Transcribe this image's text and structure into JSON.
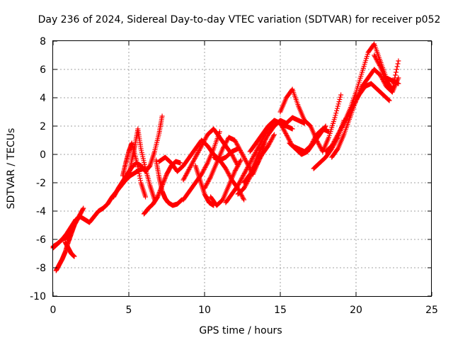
{
  "chart_data": {
    "type": "scatter",
    "title": "Day 236 of 2024, Sidereal Day-to-day VTEC variation (SDTVAR) for receiver p052",
    "xlabel": "GPS time / hours",
    "ylabel": "SDTVAR / TECUs",
    "xlim": [
      0,
      25
    ],
    "ylim": [
      -10,
      8
    ],
    "x_ticks": [
      "0",
      "5",
      "10",
      "15",
      "20",
      "25"
    ],
    "y_ticks": [
      "-10",
      "-8",
      "-6",
      "-4",
      "-2",
      "0",
      "2",
      "4",
      "6",
      "8"
    ],
    "grid": true,
    "legend": "none",
    "marker": "plus",
    "color": "#ff0000",
    "series": [
      {
        "x": [
          0.0,
          0.3,
          0.6,
          0.9,
          1.2,
          1.5,
          1.8,
          2.1,
          2.4,
          2.7,
          3.0,
          3.3,
          3.6,
          3.9,
          4.2,
          4.5,
          4.8,
          5.1,
          5.4,
          5.7,
          6.0
        ],
        "y": [
          -6.5,
          -6.3,
          -6.0,
          -5.6,
          -5.1,
          -4.6,
          -4.4,
          -4.6,
          -4.8,
          -4.4,
          -4.0,
          -3.8,
          -3.5,
          -3.0,
          -2.6,
          -2.2,
          -1.8,
          -1.5,
          -1.3,
          -1.1,
          -1.0
        ]
      },
      {
        "x": [
          0.2,
          0.4,
          0.6,
          0.8,
          1.0,
          1.2,
          1.4,
          1.7,
          2.0
        ],
        "y": [
          -8.2,
          -7.8,
          -7.4,
          -6.9,
          -6.2,
          -5.6,
          -5.0,
          -4.4,
          -3.8
        ]
      },
      {
        "x": [
          0.8,
          1.0,
          1.2,
          1.4
        ],
        "y": [
          -6.2,
          -6.6,
          -7.0,
          -7.2
        ]
      },
      {
        "x": [
          4.0,
          4.3,
          4.6,
          4.9,
          5.2,
          5.5,
          5.8,
          6.1,
          6.4,
          6.7,
          7.0,
          7.2
        ],
        "y": [
          -3.0,
          -2.4,
          -1.9,
          -1.4,
          -0.9,
          -0.6,
          -0.8,
          -1.2,
          -0.8,
          0.2,
          1.5,
          2.7
        ]
      },
      {
        "x": [
          4.6,
          4.8,
          5.0,
          5.2,
          5.5,
          5.8,
          6.1
        ],
        "y": [
          -1.5,
          -0.6,
          0.2,
          0.8,
          -0.4,
          -2.0,
          -3.0
        ]
      },
      {
        "x": [
          5.0,
          5.2,
          5.4,
          5.6,
          5.8,
          6.1,
          6.4,
          6.7
        ],
        "y": [
          -1.5,
          -0.4,
          0.6,
          1.8,
          0.4,
          -1.0,
          -2.2,
          -3.2
        ]
      },
      {
        "x": [
          6.0,
          6.3,
          6.6,
          6.9,
          7.2,
          7.5,
          7.8,
          8.1,
          8.4
        ],
        "y": [
          -4.2,
          -3.8,
          -3.5,
          -3.0,
          -2.2,
          -1.4,
          -0.8,
          -0.5,
          -0.6
        ]
      },
      {
        "x": [
          6.8,
          7.0,
          7.2,
          7.4,
          7.6,
          7.9,
          8.2,
          8.5
        ],
        "y": [
          -0.4,
          -1.6,
          -2.6,
          -3.1,
          -3.4,
          -3.6,
          -3.5,
          -3.2
        ]
      },
      {
        "x": [
          7.0,
          7.4,
          7.8,
          8.2,
          8.6,
          9.0,
          9.4,
          9.8,
          10.2,
          10.6,
          11.0,
          11.4,
          11.8,
          12.2,
          12.6
        ],
        "y": [
          -0.5,
          -0.2,
          -0.6,
          -1.2,
          -0.8,
          -0.2,
          0.4,
          1.0,
          0.6,
          0.0,
          -0.4,
          -1.0,
          -1.8,
          -2.4,
          -3.2
        ]
      },
      {
        "x": [
          8.6,
          9.0,
          9.4,
          9.8,
          10.2,
          10.6,
          11.0,
          11.4,
          11.8,
          12.2
        ],
        "y": [
          -1.8,
          -1.0,
          -0.2,
          0.6,
          1.4,
          1.8,
          1.2,
          0.6,
          0.0,
          -0.8
        ]
      },
      {
        "x": [
          8.6,
          9.0,
          9.4,
          9.8,
          10.2,
          10.6,
          11.0
        ],
        "y": [
          -3.2,
          -2.6,
          -2.0,
          -1.4,
          -0.6,
          0.4,
          1.6
        ]
      },
      {
        "x": [
          9.4,
          9.7,
          10.0,
          10.3,
          10.6
        ],
        "y": [
          -0.8,
          -1.8,
          -2.8,
          -3.4,
          -3.6
        ]
      },
      {
        "x": [
          10.0,
          10.4,
          10.8,
          11.2,
          11.6,
          12.0,
          12.4,
          12.8,
          13.2,
          13.6,
          14.0
        ],
        "y": [
          -2.4,
          -1.6,
          -0.6,
          0.4,
          1.2,
          1.0,
          0.2,
          -0.6,
          -1.4,
          -0.4,
          0.8
        ]
      },
      {
        "x": [
          10.4,
          10.8,
          11.2,
          11.6,
          12.0,
          12.4
        ],
        "y": [
          -3.0,
          -3.6,
          -3.2,
          -2.2,
          -1.2,
          -0.4
        ]
      },
      {
        "x": [
          10.6,
          11.0,
          11.4,
          11.8,
          12.2
        ],
        "y": [
          -0.2,
          -0.4,
          -0.2,
          0.2,
          0.4
        ]
      },
      {
        "x": [
          11.4,
          11.8,
          12.2,
          12.6,
          13.0,
          13.4,
          13.8,
          14.2,
          14.6,
          15.0,
          15.4,
          15.8
        ],
        "y": [
          -3.4,
          -2.8,
          -2.2,
          -1.4,
          -0.6,
          0.2,
          1.0,
          1.8,
          2.4,
          2.2,
          2.0,
          1.8
        ]
      },
      {
        "x": [
          12.2,
          12.6,
          13.0,
          13.4,
          13.8,
          14.2,
          14.6
        ],
        "y": [
          -2.8,
          -2.4,
          -1.6,
          -0.8,
          0.0,
          0.6,
          1.4
        ]
      },
      {
        "x": [
          12.6,
          13.0,
          13.4,
          13.8,
          14.2,
          14.6,
          15.0,
          15.4,
          15.8,
          16.2,
          16.6
        ],
        "y": [
          -2.0,
          -1.4,
          -0.4,
          0.6,
          1.4,
          2.0,
          2.4,
          2.2,
          2.6,
          2.4,
          2.2
        ]
      },
      {
        "x": [
          13.0,
          13.4,
          13.8,
          14.2,
          14.6,
          15.0,
          15.4,
          15.8,
          16.2,
          16.6,
          17.0,
          17.4,
          17.8,
          18.2
        ],
        "y": [
          0.2,
          0.8,
          1.4,
          2.0,
          2.4,
          2.2,
          1.4,
          0.6,
          0.4,
          0.2,
          0.6,
          1.4,
          1.8,
          1.6
        ]
      },
      {
        "x": [
          15.0,
          15.4,
          15.8,
          16.2,
          16.6
        ],
        "y": [
          3.0,
          4.0,
          4.6,
          3.4,
          2.4
        ]
      },
      {
        "x": [
          15.6,
          16.0,
          16.4,
          16.8,
          17.2,
          17.6,
          18.0
        ],
        "y": [
          0.8,
          0.4,
          0.0,
          0.2,
          0.8,
          1.4,
          2.0
        ]
      },
      {
        "x": [
          16.6,
          17.0,
          17.4,
          17.8,
          18.2,
          18.6,
          19.0
        ],
        "y": [
          2.4,
          2.0,
          1.0,
          0.2,
          1.2,
          2.6,
          4.2
        ]
      },
      {
        "x": [
          17.2,
          17.6,
          18.0,
          18.4,
          18.8,
          19.2
        ],
        "y": [
          -1.0,
          -0.6,
          -0.2,
          0.4,
          1.2,
          2.4
        ]
      },
      {
        "x": [
          18.0,
          18.4,
          18.8,
          19.2,
          19.6,
          20.0,
          20.4,
          20.8,
          21.2,
          21.6,
          22.0,
          22.4,
          22.8
        ],
        "y": [
          0.2,
          0.6,
          1.4,
          2.2,
          3.2,
          4.4,
          5.8,
          7.2,
          7.8,
          6.6,
          5.4,
          5.2,
          5.0
        ]
      },
      {
        "x": [
          18.4,
          18.8,
          19.2,
          19.6,
          20.0,
          20.4,
          20.8,
          21.2,
          21.6,
          22.0,
          22.4,
          22.8
        ],
        "y": [
          -0.2,
          0.4,
          1.4,
          2.6,
          3.8,
          4.8,
          5.4,
          6.0,
          5.6,
          4.8,
          4.4,
          5.4
        ]
      },
      {
        "x": [
          19.0,
          19.4,
          19.8,
          20.2,
          20.6,
          21.0,
          21.4,
          21.8,
          22.2
        ],
        "y": [
          1.8,
          2.6,
          3.4,
          4.2,
          4.8,
          5.0,
          4.6,
          4.2,
          3.8
        ]
      },
      {
        "x": [
          21.2,
          21.6,
          22.0,
          22.4,
          22.8
        ],
        "y": [
          7.0,
          6.2,
          5.2,
          4.6,
          6.6
        ]
      },
      {
        "x": [
          0.0,
          0.2,
          0.4,
          0.6,
          0.8,
          1.0,
          1.2,
          1.4
        ],
        "y": [
          -6.6,
          -6.4,
          -6.2,
          -6.0,
          -5.9,
          -5.8,
          -5.4,
          -5.0
        ]
      }
    ]
  }
}
